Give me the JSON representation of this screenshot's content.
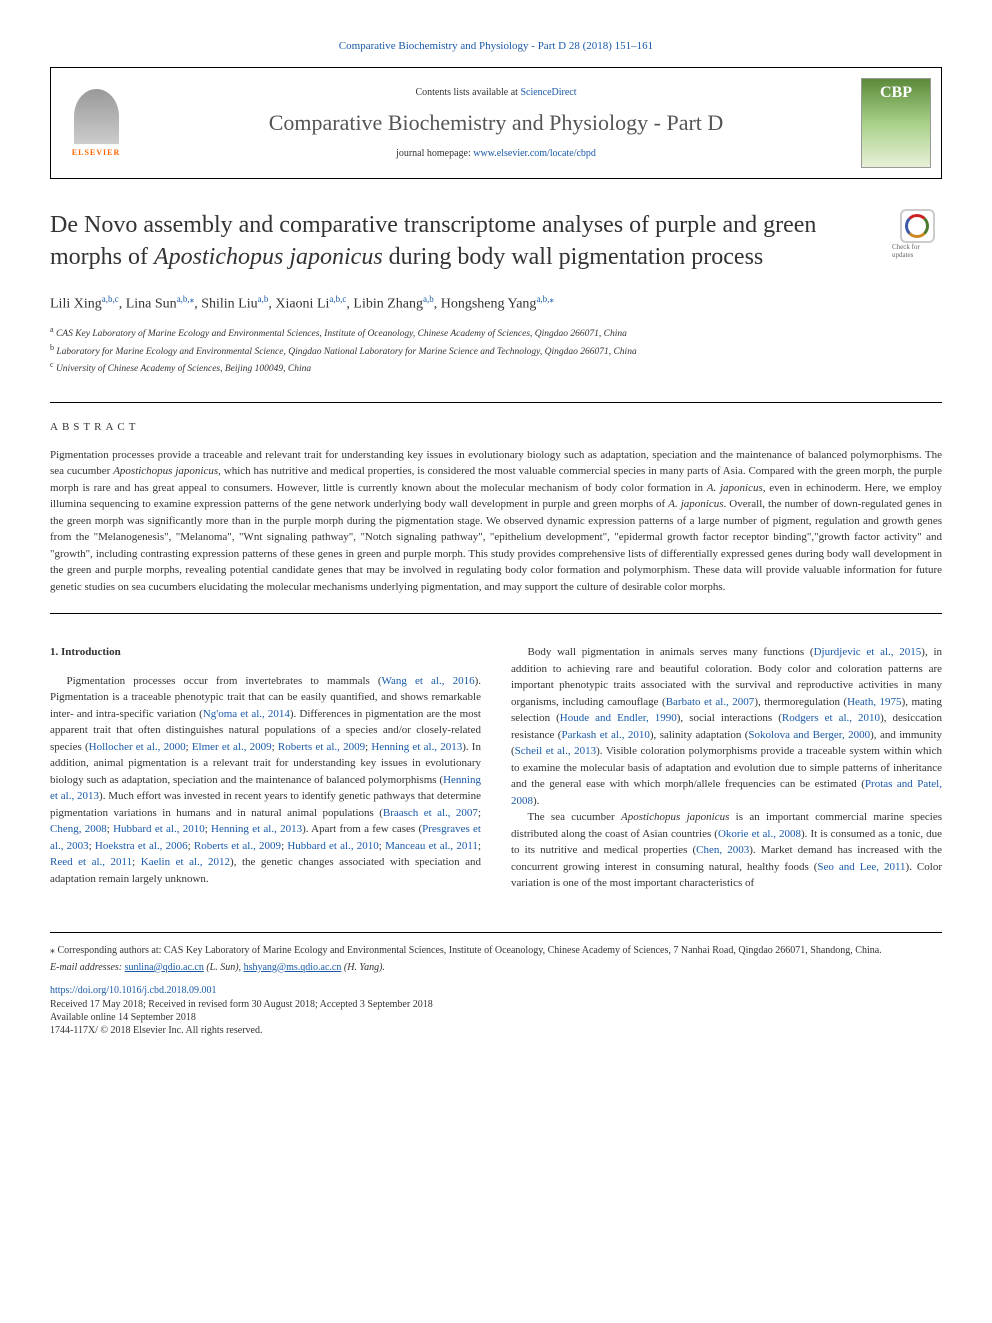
{
  "header": {
    "citation": "Comparative Biochemistry and Physiology - Part D 28 (2018) 151–161",
    "contents_prefix": "Contents lists available at ",
    "sciencedirect": "ScienceDirect",
    "journal_name": "Comparative Biochemistry and Physiology - Part D",
    "homepage_prefix": "journal homepage: ",
    "homepage_url": "www.elsevier.com/locate/cbpd",
    "elsevier_label": "ELSEVIER",
    "cover_label": "CBP"
  },
  "crossmark": "Check for updates",
  "title_pre": "De Novo assembly and comparative transcriptome analyses of purple and green morphs of ",
  "title_italic": "Apostichopus japonicus",
  "title_post": " during body wall pigmentation process",
  "authors": {
    "list": [
      {
        "name": "Lili Xing",
        "aff": "a,b,c"
      },
      {
        "name": "Lina Sun",
        "aff": "a,b,",
        "corr": true
      },
      {
        "name": "Shilin Liu",
        "aff": "a,b"
      },
      {
        "name": "Xiaoni Li",
        "aff": "a,b,c"
      },
      {
        "name": "Libin Zhang",
        "aff": "a,b"
      },
      {
        "name": "Hongsheng Yang",
        "aff": "a,b,",
        "corr": true
      }
    ]
  },
  "affiliations": {
    "a": "CAS Key Laboratory of Marine Ecology and Environmental Sciences, Institute of Oceanology, Chinese Academy of Sciences, Qingdao 266071, China",
    "b": "Laboratory for Marine Ecology and Environmental Science, Qingdao National Laboratory for Marine Science and Technology, Qingdao 266071, China",
    "c": "University of Chinese Academy of Sciences, Beijing 100049, China"
  },
  "abstract": {
    "heading": "ABSTRACT",
    "t1": "Pigmentation processes provide a traceable and relevant trait for understanding key issues in evolutionary biology such as adaptation, speciation and the maintenance of balanced polymorphisms. The sea cucumber ",
    "i1": "Apostichopus japonicus",
    "t2": ", which has nutritive and medical properties, is considered the most valuable commercial species in many parts of Asia. Compared with the green morph, the purple morph is rare and has great appeal to consumers. However, little is currently known about the molecular mechanism of body color formation in ",
    "i2": "A. japonicus",
    "t3": ", even in echinoderm. Here, we employ illumina sequencing to examine expression patterns of the gene network underlying body wall development in purple and green morphs of ",
    "i3": "A. japonicus",
    "t4": ". Overall, the number of down-regulated genes in the green morph was significantly more than in the purple morph during the pigmentation stage. We observed dynamic expression patterns of a large number of pigment, regulation and growth genes from the \"Melanogenesis\", \"Melanoma\", \"Wnt signaling pathway\", \"Notch signaling pathway\", \"epithelium development\", \"epidermal growth factor receptor binding\",\"growth factor activity\" and \"growth\", including contrasting expression patterns of these genes in green and purple morph. This study provides comprehensive lists of differentially expressed genes during body wall development in the green and purple morphs, revealing potential candidate genes that may be involved in regulating body color formation and polymorphism. These data will provide valuable information for future genetic studies on sea cucumbers elucidating the molecular mechanisms underlying pigmentation, and may support the culture of desirable color morphs."
  },
  "body": {
    "heading": "1. Introduction",
    "left": {
      "p1a": "Pigmentation processes occur from invertebrates to mammals (",
      "r1": "Wang et al., 2016",
      "p1b": "). Pigmentation is a traceable phenotypic trait that can be easily quantified, and shows remarkable inter- and intra-specific variation (",
      "r2": "Ng'oma et al., 2014",
      "p1c": "). Differences in pigmentation are the most apparent trait that often distinguishes natural populations of a species and/or closely-related species (",
      "r3": "Hollocher et al., 2000",
      "r4": "Elmer et al., 2009",
      "r5": "Roberts et al., 2009",
      "r6": "Henning et al., 2013",
      "p1d": "). In addition, animal pigmentation is a relevant trait for understanding key issues in evolutionary biology such as adaptation, speciation and the maintenance of balanced polymorphisms (",
      "r7": "Henning et al., 2013",
      "p1e": "). Much effort was invested in recent years to identify genetic pathways that determine pigmentation variations in humans and in natural animal populations (",
      "r8": "Braasch et al., 2007",
      "r9": "Cheng, 2008",
      "r10": "Hubbard et al., 2010",
      "r11": "Henning et al., 2013",
      "p1f": "). Apart from a few cases (",
      "r12": "Presgraves et al., 2003",
      "r13": "Hoekstra et al., 2006",
      "r14": "Roberts et al., 2009",
      "r15": "Hubbard et al., 2010",
      "r16": "Manceau et al., 2011",
      "r17": "Reed et al., 2011",
      "r18": "Kaelin et al., 2012",
      "p1g": "), the genetic changes associated with speciation and adaptation remain largely unknown."
    },
    "right": {
      "p1a": "Body wall pigmentation in animals serves many functions (",
      "r1": "Djurdjevic et al., 2015",
      "p1b": "), in addition to achieving rare and beautiful coloration. Body color and coloration patterns are important phenotypic traits associated with the survival and reproductive activities in many organisms, including camouflage (",
      "r2": "Barbato et al., 2007",
      "p1c": "), thermoregulation (",
      "r3": "Heath, 1975",
      "p1d": "), mating selection (",
      "r4": "Houde and Endler, 1990",
      "p1e": "), social interactions (",
      "r5": "Rodgers et al., 2010",
      "p1f": "), desiccation resistance (",
      "r6": "Parkash et al., 2010",
      "p1g": "), salinity adaptation (",
      "r7": "Sokolova and Berger, 2000",
      "p1h": "), and immunity (",
      "r8": "Scheil et al., 2013",
      "p1i": "). Visible coloration polymorphisms provide a traceable system within which to examine the molecular basis of adaptation and evolution due to simple patterns of inheritance and the general ease with which morph/allele frequencies can be estimated (",
      "r9": "Protas and Patel, 2008",
      "p1j": ").",
      "p2a": "The sea cucumber ",
      "i1": "Apostichopus japonicus",
      "p2b": " is an important commercial marine species distributed along the coast of Asian countries (",
      "r10": "Okorie et al., 2008",
      "p2c": "). It is consumed as a tonic, due to its nutritive and medical properties (",
      "r11": "Chen, 2003",
      "p2d": "). Market demand has increased with the concurrent growing interest in consuming natural, healthy foods (",
      "r12": "Seo and Lee, 2011",
      "p2e": "). Color variation is one of the most important characteristics of"
    }
  },
  "footer": {
    "corr_marker": "⁎",
    "corr_text": " Corresponding authors at: CAS Key Laboratory of Marine Ecology and Environmental Sciences, Institute of Oceanology, Chinese Academy of Sciences, 7 Nanhai Road, Qingdao 266071, Shandong, China.",
    "email_prefix": "E-mail addresses: ",
    "email1": "sunlina@qdio.ac.cn",
    "email1_suffix": " (L. Sun), ",
    "email2": "hshyang@ms.qdio.ac.cn",
    "email2_suffix": " (H. Yang).",
    "doi": "https://doi.org/10.1016/j.cbd.2018.09.001",
    "received": "Received 17 May 2018; Received in revised form 30 August 2018; Accepted 3 September 2018",
    "available": "Available online 14 September 2018",
    "copyright": "1744-117X/ © 2018 Elsevier Inc. All rights reserved."
  },
  "colors": {
    "link": "#1a5aa8",
    "elsevier_orange": "#ff6600",
    "text": "#333333"
  }
}
